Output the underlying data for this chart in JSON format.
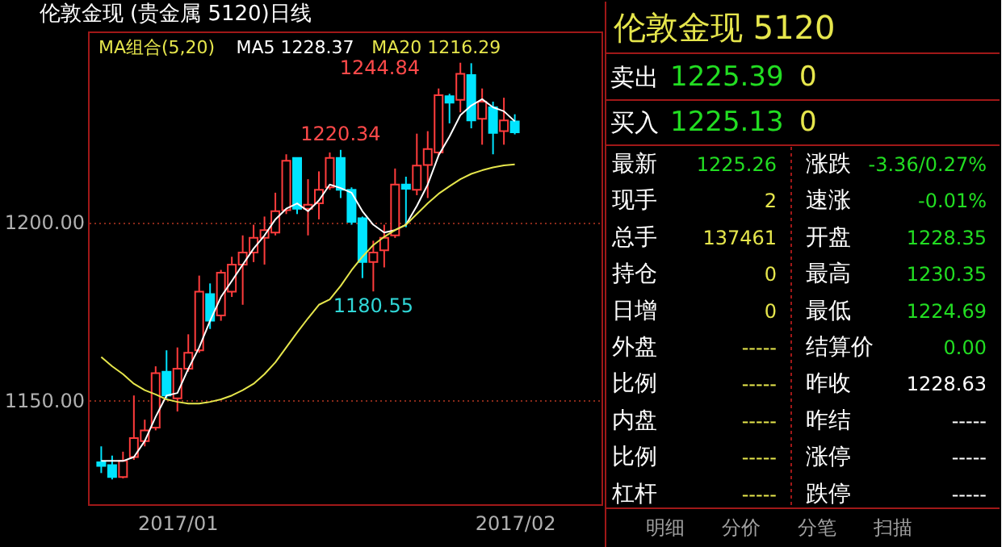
{
  "chart_data": [
    {
      "type": "candlestick",
      "title": "伦敦金现 (贵金属 5120)日线",
      "legend_title": "MA组合(5,20)",
      "legend": "top",
      "grid": "y",
      "categories": [
        null,
        null,
        null,
        null,
        null,
        null,
        null,
        "2017/01",
        null,
        null,
        null,
        null,
        null,
        null,
        null,
        null,
        null,
        null,
        null,
        null,
        null,
        null,
        null,
        null,
        null,
        null,
        null,
        null,
        null,
        null,
        null,
        null,
        null,
        null,
        null,
        null,
        null,
        null,
        "2017/02"
      ],
      "ohlc": [
        [
          1132.5,
          1137.0,
          1129.5,
          1131.5
        ],
        [
          1131.7,
          1134.4,
          1127.7,
          1128.4
        ],
        [
          1128.4,
          1135.5,
          1128.0,
          1132.9
        ],
        [
          1134.0,
          1151.3,
          1133.2,
          1139.3
        ],
        [
          1138.5,
          1144.5,
          1137.0,
          1141.5
        ],
        [
          1142.3,
          1159.5,
          1141.5,
          1157.6
        ],
        [
          1158.0,
          1164.0,
          1150.5,
          1151.3
        ],
        [
          1150.5,
          1164.8,
          1146.8,
          1158.8
        ],
        [
          1158.8,
          1168.5,
          1158.0,
          1163.3
        ],
        [
          1164.0,
          1185.0,
          1163.3,
          1180.5
        ],
        [
          1179.8,
          1182.8,
          1170.0,
          1172.3
        ],
        [
          1173.8,
          1186.6,
          1172.3,
          1185.8
        ],
        [
          1180.5,
          1190.3,
          1179.0,
          1188.1
        ],
        [
          1188.1,
          1196.3,
          1176.8,
          1191.5
        ],
        [
          1191.5,
          1199.3,
          1188.8,
          1195.6
        ],
        [
          1195.6,
          1201.6,
          1188.1,
          1197.8
        ],
        [
          1197.1,
          1208.3,
          1196.3,
          1203.1
        ],
        [
          1203.4,
          1219.1,
          1202.3,
          1217.3
        ],
        [
          1218.1,
          1218.1,
          1202.3,
          1203.8
        ],
        [
          1203.8,
          1212.1,
          1196.3,
          1204.9
        ],
        [
          1205.3,
          1214.3,
          1200.8,
          1209.1
        ],
        [
          1209.8,
          1219.6,
          1209.1,
          1218.1
        ],
        [
          1218.1,
          1220.34,
          1206.8,
          1209.1
        ],
        [
          1209.1,
          1209.8,
          1199.3,
          1200.1
        ],
        [
          1201.1,
          1201.6,
          1184.3,
          1188.8
        ],
        [
          1188.8,
          1194.8,
          1180.55,
          1191.5
        ],
        [
          1192.1,
          1199.3,
          1187.3,
          1195.6
        ],
        [
          1196.3,
          1215.1,
          1195.6,
          1210.6
        ],
        [
          1210.6,
          1212.8,
          1198.6,
          1209.4
        ],
        [
          1209.1,
          1224.9,
          1207.6,
          1215.9
        ],
        [
          1216.1,
          1225.6,
          1206.8,
          1220.6
        ],
        [
          1219.6,
          1237.6,
          1218.8,
          1235.7
        ],
        [
          1235.4,
          1236.1,
          1227.8,
          1233.6
        ],
        [
          1234.4,
          1244.84,
          1230.9,
          1241.7
        ],
        [
          1241.4,
          1244.7,
          1226.4,
          1228.6
        ],
        [
          1229.1,
          1237.6,
          1221.8,
          1233.9
        ],
        [
          1232.3,
          1233.9,
          1219.1,
          1225.1
        ],
        [
          1225.6,
          1235.0,
          1221.8,
          1228.6
        ],
        [
          1228.35,
          1230.35,
          1224.69,
          1225.26
        ]
      ],
      "colors": [
        "#00e4ff",
        "#00e4ff",
        "#ff3c3c",
        "#ff3c3c",
        "#ff3c3c",
        "#ff3c3c",
        "#00e4ff",
        "#ff3c3c",
        "#ff3c3c",
        "#ff3c3c",
        "#00e4ff",
        "#ff3c3c",
        "#ff3c3c",
        "#ff3c3c",
        "#ff3c3c",
        "#ff3c3c",
        "#ff3c3c",
        "#ff3c3c",
        "#00e4ff",
        "#ff3c3c",
        "#ff3c3c",
        "#ff3c3c",
        "#00e4ff",
        "#00e4ff",
        "#00e4ff",
        "#ff3c3c",
        "#ff3c3c",
        "#ff3c3c",
        "#00e4ff",
        "#ff3c3c",
        "#ff3c3c",
        "#ff3c3c",
        "#00e4ff",
        "#ff3c3c",
        "#00e4ff",
        "#ff3c3c",
        "#00e4ff",
        "#ff3c3c",
        "#00e4ff"
      ],
      "series": [
        {
          "name": "MA5 1228.37",
          "type": "line",
          "color": "#ffffff",
          "values": [
            1132.9,
            1132.9,
            1132.9,
            1134.0,
            1138.5,
            1145.3,
            1151.3,
            1152.0,
            1158.8,
            1164.8,
            1172.3,
            1179.0,
            1183.5,
            1188.1,
            1192.6,
            1196.3,
            1200.8,
            1203.8,
            1205.3,
            1203.1,
            1206.1,
            1210.6,
            1209.6,
            1208.3,
            1203.1,
            1199.3,
            1197.1,
            1197.8,
            1199.3,
            1204.6,
            1210.6,
            1218.8,
            1224.1,
            1230.1,
            1232.8,
            1234.6,
            1232.3,
            1231.2,
            1228.37
          ]
        },
        {
          "name": "MA20 1216.29",
          "type": "line",
          "color": "#e6e64c",
          "values": [
            1162.1,
            1159.5,
            1157.3,
            1154.6,
            1152.8,
            1151.6,
            1150.2,
            1149.5,
            1149.0,
            1149.0,
            1149.5,
            1150.2,
            1151.3,
            1152.8,
            1154.6,
            1157.3,
            1160.6,
            1164.8,
            1169.0,
            1173.0,
            1176.8,
            1178.3,
            1182.1,
            1186.5,
            1190.3,
            1193.6,
            1195.9,
            1197.8,
            1199.3,
            1202.3,
            1205.3,
            1208.0,
            1210.1,
            1212.1,
            1213.6,
            1214.6,
            1215.4,
            1216.0,
            1216.29
          ]
        }
      ],
      "ylim": [
        1120.5,
        1253.4
      ],
      "yticks": [
        {
          "value": 1150,
          "label": "1150.00"
        },
        {
          "value": 1200,
          "label": "1200.00"
        }
      ],
      "annotations": [
        "1244.84",
        {
          "text": "1220.34",
          "y": 1220.34
        },
        {
          "text": "1180.55",
          "y": 1180.55
        }
      ]
    },
    {
      "type": "other",
      "title": "伦敦金现 5120",
      "annotations": [
        "卖出",
        "1225.39",
        "0",
        "买入",
        "1225.13",
        "0",
        "最新",
        "1225.26",
        "涨跌",
        "-3.36/0.27%",
        "现手",
        "2",
        "速涨",
        "-0.01%",
        "总手",
        "137461",
        "开盘",
        "1228.35",
        "持仓",
        "0",
        "最高",
        "1230.35",
        "日增",
        "0",
        "最低",
        "1224.69",
        "外盘",
        "-----",
        "结算价",
        "0.00",
        "比例",
        "-----",
        "昨收",
        "1228.63",
        "内盘",
        "-----",
        "昨结",
        "-----",
        "比例",
        "-----",
        "涨停",
        "-----",
        "杠杆",
        "-----",
        "跌停",
        "-----",
        "明细",
        "分价",
        "分笔",
        "扫描"
      ]
    }
  ]
}
